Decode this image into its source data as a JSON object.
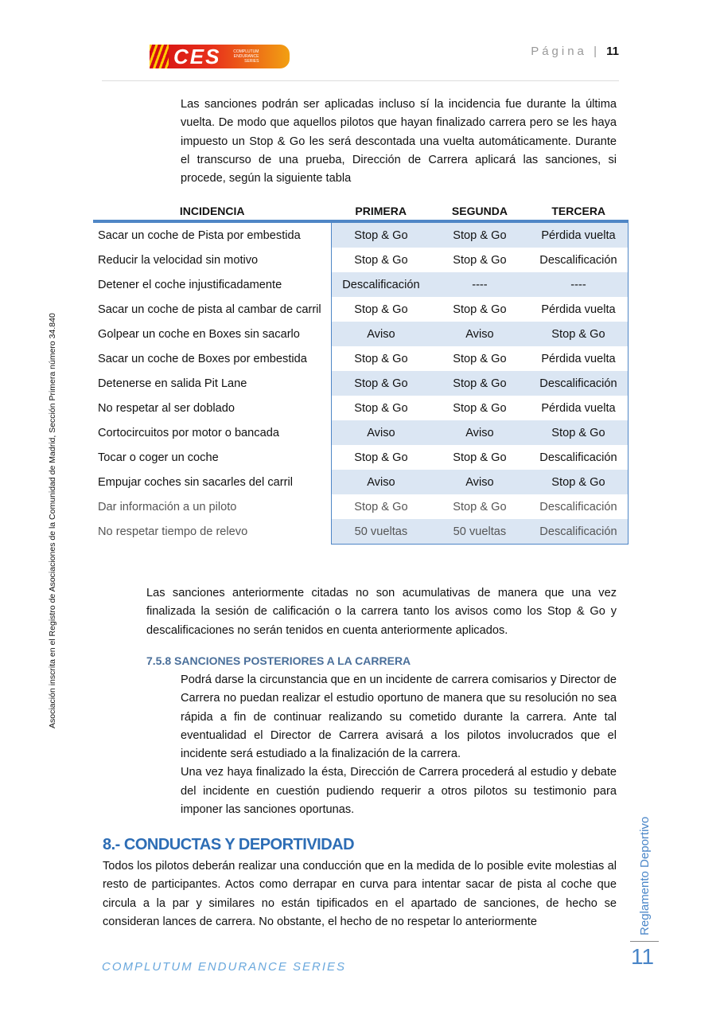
{
  "header": {
    "logo_text": "CES",
    "logo_subtext": "COMPLUTUM ENDURANCE SERIES",
    "page_label": "Página",
    "page_number": "11"
  },
  "intro": "Las sanciones podrán ser aplicadas incluso sí la incidencia fue durante la última vuelta. De modo que aquellos pilotos que hayan finalizado carrera pero se les haya impuesto un Stop & Go les será descontada una vuelta automáticamente. Durante el transcurso de una prueba, Dirección de Carrera aplicará las sanciones, si procede, según la siguiente tabla",
  "table": {
    "headers": [
      "INCIDENCIA",
      "PRIMERA",
      "SEGUNDA",
      "TERCERA"
    ],
    "rows": [
      [
        "Sacar un coche de Pista por embestida",
        "Stop & Go",
        "Stop & Go",
        "Pérdida vuelta"
      ],
      [
        "Reducir la velocidad sin motivo",
        "Stop & Go",
        "Stop & Go",
        "Descalificación"
      ],
      [
        "Detener el coche injustificadamente",
        "Descalificación",
        "----",
        "----"
      ],
      [
        "Sacar un coche de pista al cambar de carril",
        "Stop & Go",
        "Stop & Go",
        "Pérdida vuelta"
      ],
      [
        "Golpear un coche en Boxes sin sacarlo",
        "Aviso",
        "Aviso",
        "Stop & Go"
      ],
      [
        "Sacar un coche de Boxes por embestida",
        "Stop & Go",
        "Stop & Go",
        "Pérdida vuelta"
      ],
      [
        "Detenerse en salida Pit Lane",
        "Stop & Go",
        "Stop & Go",
        "Descalificación"
      ],
      [
        "No respetar al ser doblado",
        "Stop & Go",
        "Stop & Go",
        "Pérdida vuelta"
      ],
      [
        "Cortocircuitos por motor o bancada",
        "Aviso",
        "Aviso",
        "Stop & Go"
      ],
      [
        "Tocar o coger un coche",
        "Stop & Go",
        "Stop & Go",
        "Descalificación"
      ],
      [
        "Empujar coches sin sacarles del carril",
        "Aviso",
        "Aviso",
        "Stop & Go"
      ],
      [
        "Dar información a un piloto",
        "Stop & Go",
        "Stop & Go",
        "Descalificación"
      ],
      [
        "No respetar tiempo de relevo",
        "50 vueltas",
        "50 vueltas",
        "Descalificación"
      ]
    ]
  },
  "after_table": "Las sanciones anteriormente citadas no son acumulativas de manera que una vez finalizada la sesión de calificación o la carrera tanto los avisos como los Stop & Go y descalificaciones no serán tenidos en cuenta anteriormente aplicados.",
  "section_758": {
    "title": "7.5.8  SANCIONES POSTERIORES A LA CARRERA",
    "p1": "Podrá darse la circunstancia que en un incidente de carrera comisarios y Director de Carrera no puedan realizar el estudio oportuno de manera que su resolución no sea rápida a fin de continuar realizando su cometido durante la carrera. Ante tal eventualidad el Director de Carrera avisará a los pilotos involucrados que el incidente será estudiado a la finalización de la carrera.",
    "p2": "Una vez haya finalizado la ésta, Dirección de Carrera procederá al estudio y debate del incidente en cuestión pudiendo requerir a otros pilotos su testimonio para imponer las sanciones oportunas."
  },
  "section_8": {
    "title": "8.- CONDUCTAS Y DEPORTIVIDAD",
    "p1": "Todos los pilotos deberán realizar una conducción que en la medida de lo posible evite molestias al resto de participantes. Actos como derrapar en curva para intentar sacar de pista al coche que circula a la par y similares no están tipificados en el apartado de sanciones, de hecho se consideran lances de carrera. No obstante, el hecho de no respetar lo anteriormente"
  },
  "side_left": "Asociación inscrita en el Registro de Asociaciones de la Comunidad de Madrid, Sección Primera número 34.840",
  "side_right": "Reglamento Deportivo",
  "side_page_number": "11",
  "footer": "COMPLUTUM ENDURANCE SERIES",
  "colors": {
    "accent": "#4f86c6",
    "shade": "#dbe6f3",
    "heading": "#2d6db5"
  }
}
